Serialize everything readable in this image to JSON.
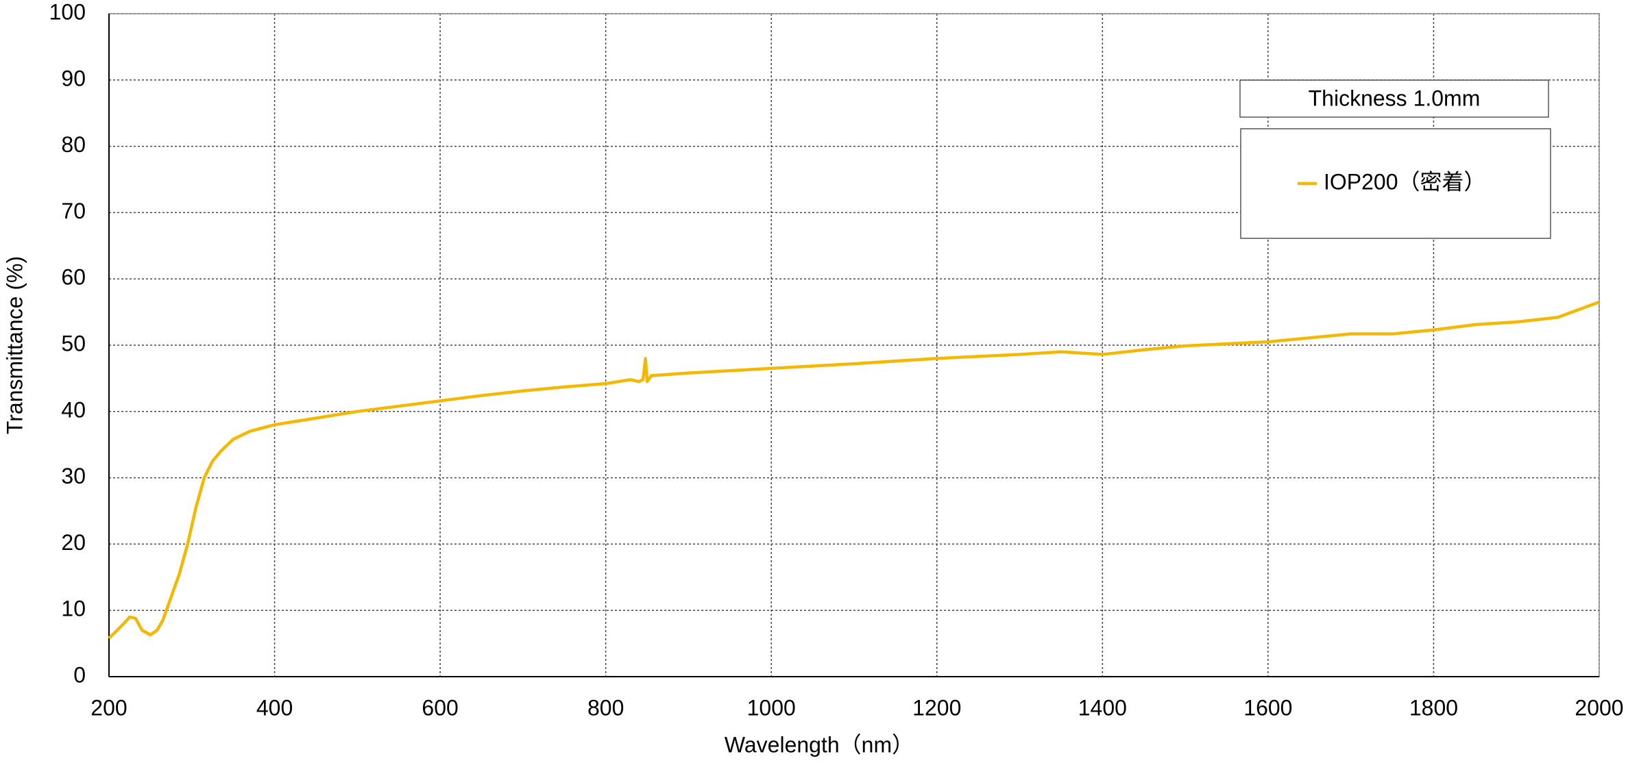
{
  "chart_data": {
    "type": "line",
    "annotation": "Thickness  1.0mm",
    "x_label": "Wavelength（nm）",
    "y_label": "Transmittance (%)",
    "xlim": [
      200,
      2000
    ],
    "xticks": [
      200,
      400,
      600,
      800,
      1000,
      1200,
      1400,
      1600,
      1800,
      2000
    ],
    "ylim": [
      0,
      100
    ],
    "yticks": [
      0,
      10,
      20,
      30,
      40,
      50,
      60,
      70,
      80,
      90,
      100
    ],
    "grid": true,
    "legend": "upper right",
    "x": [
      200,
      210,
      220,
      225,
      232,
      240,
      250,
      258,
      265,
      275,
      285,
      295,
      305,
      315,
      325,
      335,
      350,
      370,
      400,
      450,
      500,
      550,
      600,
      650,
      700,
      750,
      800,
      830,
      840,
      845,
      848,
      850,
      855,
      900,
      1000,
      1100,
      1200,
      1300,
      1350,
      1400,
      1450,
      1500,
      1600,
      1700,
      1750,
      1800,
      1850,
      1900,
      1950,
      2000
    ],
    "series": [
      {
        "name": "IOP200（密着）",
        "color": "#f5b800",
        "values": [
          5.8,
          7,
          8.3,
          9,
          8.8,
          7,
          6.3,
          7,
          8.5,
          12,
          15.5,
          20,
          25.5,
          30,
          32.5,
          34,
          35.8,
          37,
          38,
          39,
          40,
          40.8,
          41.6,
          42.4,
          43.1,
          43.7,
          44.2,
          44.8,
          44.5,
          44.8,
          48,
          44.5,
          45.4,
          45.8,
          46.5,
          47.2,
          48,
          48.6,
          49,
          48.6,
          49.3,
          49.9,
          50.5,
          51.7,
          51.7,
          52.3,
          53.1,
          53.5,
          54.2,
          56.5
        ]
      }
    ]
  }
}
